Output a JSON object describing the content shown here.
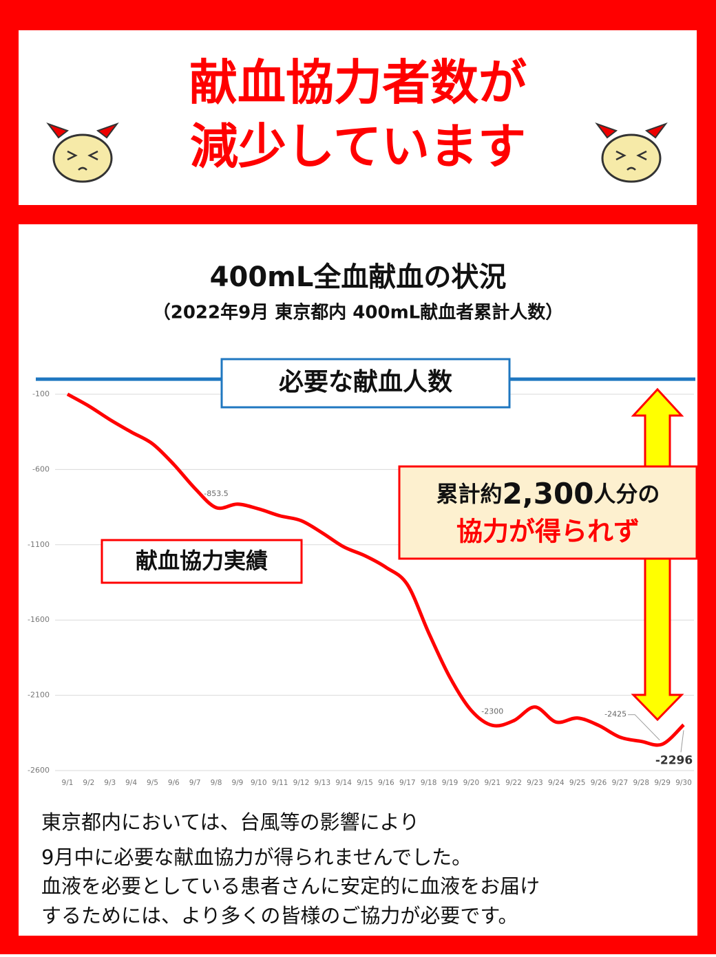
{
  "header": {
    "title_lines": [
      "献血協力者数が",
      "減少しています"
    ]
  },
  "chart_data": {
    "type": "line",
    "title": "400mL全血献血の状況",
    "subtitle": "（2022年9月 東京都内 400mL献血者累計人数）",
    "categories": [
      "9/1",
      "9/2",
      "9/3",
      "9/4",
      "9/5",
      "9/6",
      "9/7",
      "9/8",
      "9/9",
      "9/10",
      "9/11",
      "9/12",
      "9/13",
      "9/14",
      "9/15",
      "9/16",
      "9/17",
      "9/18",
      "9/19",
      "9/20",
      "9/21",
      "9/22",
      "9/23",
      "9/24",
      "9/25",
      "9/26",
      "9/27",
      "9/28",
      "9/29",
      "9/30"
    ],
    "series": [
      {
        "name": "献血協力実績",
        "color": "#ff0000",
        "values": [
          -100,
          -178,
          -269,
          -351,
          -429,
          -566,
          -726,
          -853.5,
          -830,
          -862,
          -908,
          -940,
          -1022,
          -1114,
          -1173,
          -1251,
          -1365,
          -1685,
          -1981,
          -2200,
          -2300,
          -2269,
          -2178,
          -2278,
          -2251,
          -2300,
          -2378,
          -2406,
          -2425,
          -2296
        ],
        "value_labels": [
          null,
          null,
          null,
          null,
          null,
          null,
          null,
          "-853.5",
          null,
          null,
          null,
          null,
          null,
          null,
          null,
          null,
          null,
          null,
          null,
          null,
          "-2300",
          null,
          null,
          null,
          null,
          null,
          null,
          null,
          "-2425",
          "-2296"
        ]
      }
    ],
    "target": {
      "label": "必要な献血人数",
      "value": 0,
      "color": "#1f77c0"
    },
    "ylim": [
      -2600,
      0
    ],
    "yticks": [
      -100,
      -600,
      -1100,
      -1600,
      -2100,
      -2600
    ],
    "grid": true,
    "callout": {
      "line1": [
        "累計約",
        "2,300",
        "人分の"
      ],
      "line2": "協力が得られず"
    }
  },
  "footer": {
    "lines": [
      "東京都内においては、台風等の影響により",
      "9月中に必要な献血協力が得られませんでした。",
      "血液を必要としている患者さんに安定的に血液をお届け",
      "するためには、より多くの皆様のご協力が必要です。"
    ]
  }
}
